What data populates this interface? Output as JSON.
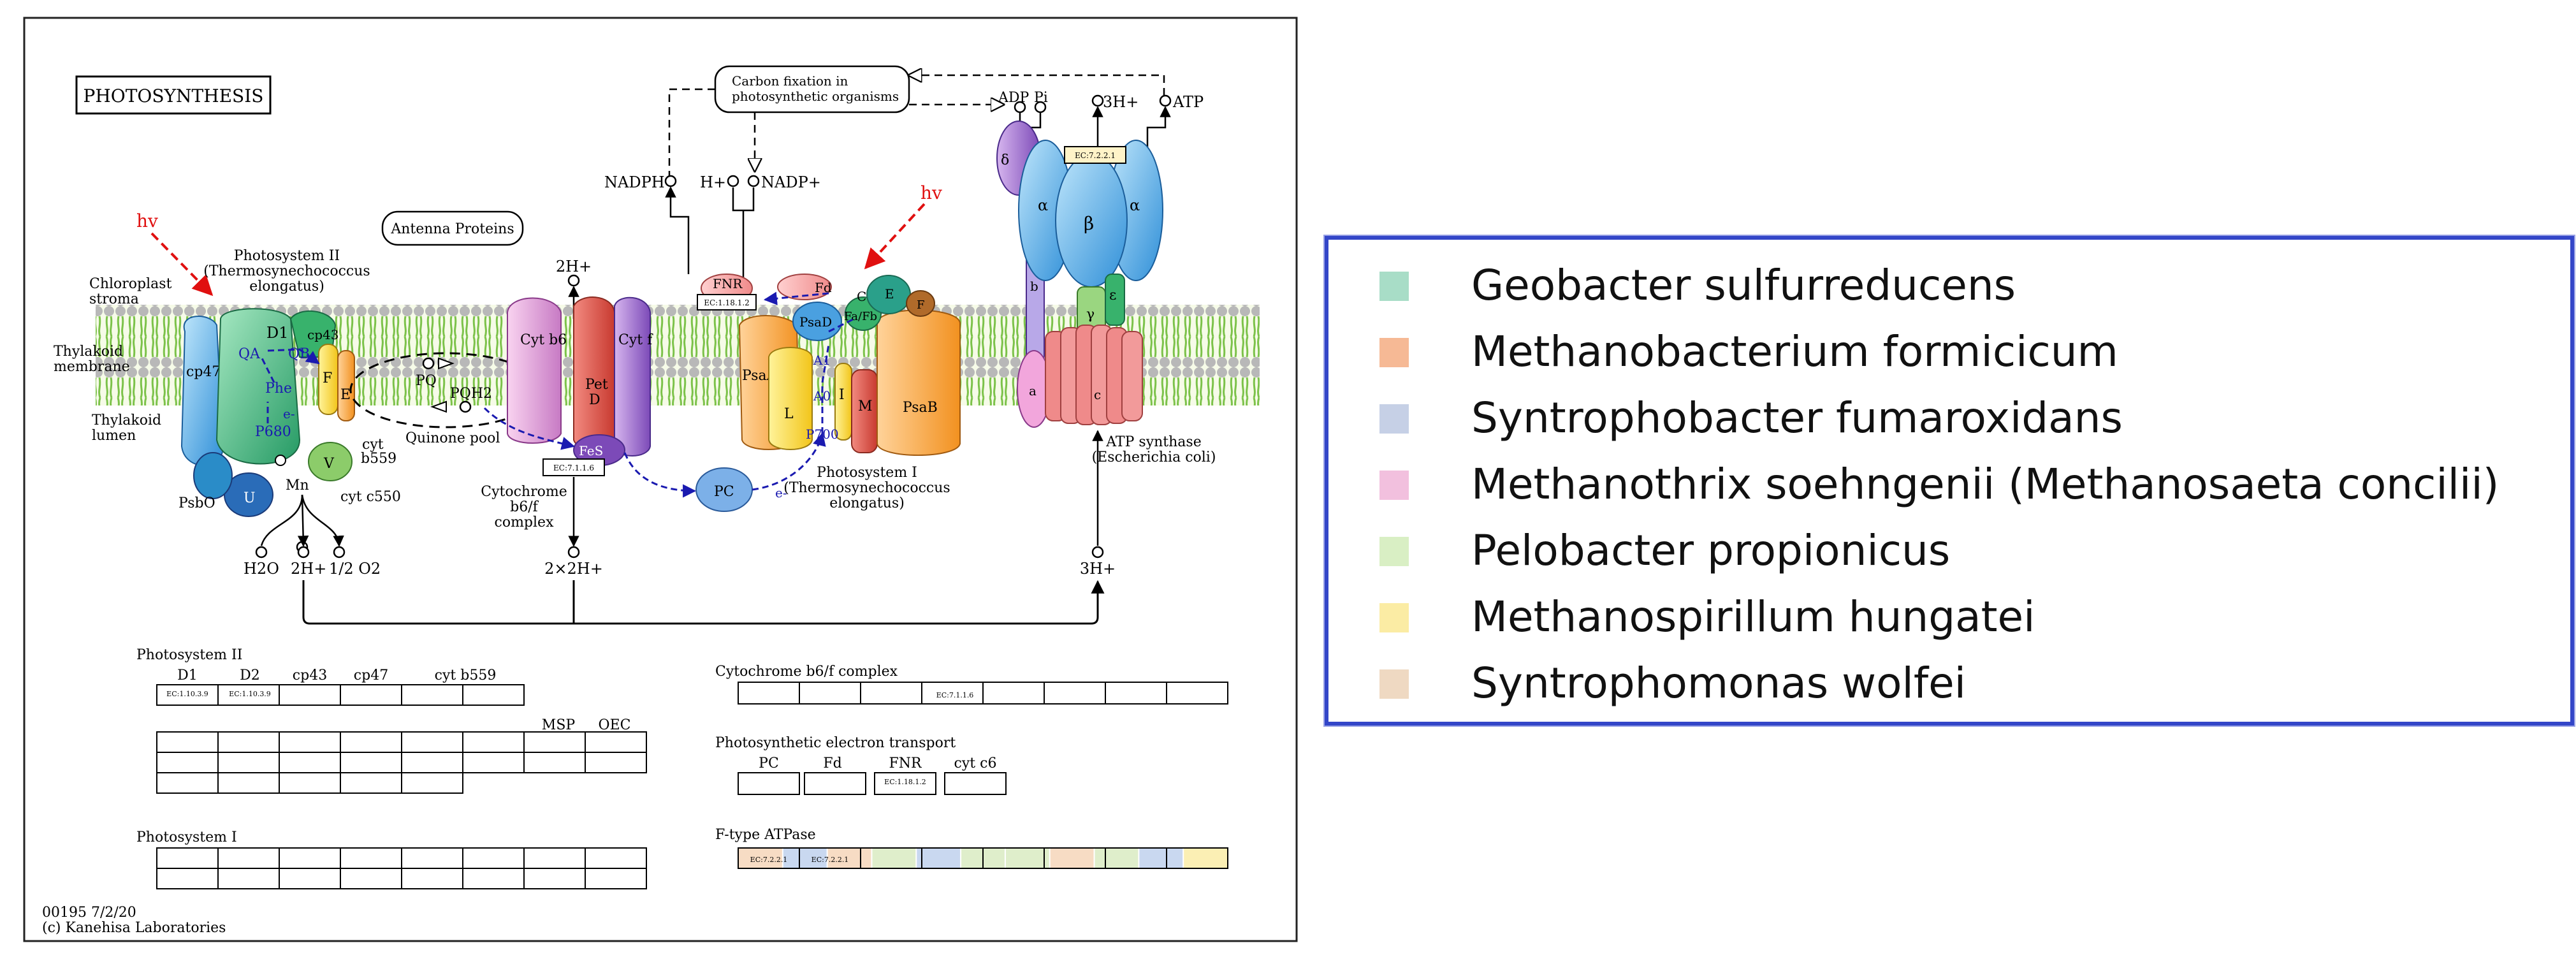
{
  "pathway": {
    "title": "PHOTOSYNTHESIS",
    "footer_id": "00195 7/2/20",
    "footer_copyright": "(c) Kanehisa Laboratories",
    "hv1": "hv",
    "hv2": "hv",
    "antenna": "Antenna Proteins",
    "carbon_fixation_1": "Carbon fixation in",
    "carbon_fixation_2": "photosynthetic organisms",
    "chloroplast_1": "Chloroplast",
    "chloroplast_2": "stroma",
    "thylakoid_mem_1": "Thylakoid",
    "thylakoid_mem_2": "membrane",
    "thylakoid_lum_1": "Thylakoid",
    "thylakoid_lum_2": "lumen",
    "ps2_title_1": "Photosystem II",
    "ps2_title_2": "(Thermosynechococcus",
    "ps2_title_3": "elongatus)",
    "ps1_title_1": "Photosystem I",
    "ps1_title_2": "(Thermosynechococcus",
    "ps1_title_3": "elongatus)",
    "cyt_complex_1": "Cytochrome",
    "cyt_complex_2": "b6/f",
    "cyt_complex_3": "complex",
    "atp_synthase_1": "ATP synthase",
    "atp_synthase_2": "(Escherichia coli)",
    "quinone_pool": "Quinone pool",
    "labels": {
      "nadph": "NADPH",
      "hplus": "H+",
      "nadp": "NADP+",
      "adp": "ADP",
      "pi": "Pi",
      "threeh_top": "3H+",
      "atp": "ATP",
      "twoh_top": "2H+",
      "h2o": "H2O",
      "twoh_bottom": "2H+",
      "half_o2": "1/2 O2",
      "twoxtwoh": "2×2H+",
      "threeh_bottom": "3H+",
      "d1": "D1",
      "cp43": "cp43",
      "cp47": "cp47",
      "qa": "QA",
      "qb": "QB",
      "pheo": "Phe",
      "p680": "P680",
      "f": "F",
      "e": "E",
      "v": "V",
      "u": "U",
      "mn": "Mn",
      "psbo": "PsbO",
      "cytb559_1": "cyt",
      "cytb559_2": "b559",
      "cytc550": "cyt c550",
      "pq": "PQ",
      "pqh2": "PQH2",
      "cytb6": "Cyt b6",
      "pet_1": "Pet",
      "pet_2": "D",
      "cytf": "Cyt f",
      "fes": "FeS",
      "fnr": "FNR",
      "fd": "Fd",
      "psad": "PsaD",
      "c_sub": "C",
      "e_sub": "E",
      "fafb": "Fa/Fb",
      "psaa": "PsaA",
      "a1": "A1",
      "a0": "A0",
      "p700": "P700",
      "l": "L",
      "i": "I",
      "m": "M",
      "psab": "PsaB",
      "fe_sub": "F",
      "pc": "PC",
      "eminus": "e-",
      "eminus2": "e-",
      "delta": "δ",
      "alpha1": "α",
      "beta": "β",
      "alpha2": "α",
      "b_sub": "b",
      "gamma": "γ",
      "epsilon": "ε",
      "a_sub": "a",
      "c_ring": "c"
    },
    "ec": {
      "fnr": "EC:1.18.1.2",
      "cyt": "EC:7.1.1.6",
      "atp": "EC:7.2.2.1"
    }
  },
  "tables": {
    "ps2": {
      "title": "Photosystem II",
      "headers": [
        "D1",
        "D2",
        "cp43",
        "cp47",
        "cyt b559"
      ],
      "extra_headers": [
        "MSP",
        "OEC"
      ],
      "row1_ec": [
        "EC:1.10.3.9",
        "EC:1.10.3.9"
      ]
    },
    "ps1": {
      "title": "Photosystem I"
    },
    "cyt": {
      "title": "Cytochrome b6/f complex",
      "ec": "EC:7.1.1.6"
    },
    "pet": {
      "title": "Photosynthetic electron transport",
      "headers": [
        "PC",
        "Fd",
        "FNR",
        "cyt c6"
      ],
      "ec": "EC:1.18.1.2"
    },
    "atp": {
      "title": "F-type ATPase",
      "ec": [
        "EC:7.2.2.1",
        "EC:7.2.2.1"
      ],
      "cell_colors": [
        "#f7dcc4",
        "#c9d8f0",
        "#f7dcc4",
        "#dfeecb",
        "#c9d8f0",
        "#dfeecb",
        "#dfeecb",
        "#f7dcc4",
        "#dfeecb",
        "#c9d8f0",
        "#fbefb4"
      ]
    }
  },
  "legend": {
    "items": [
      {
        "label": "Geobacter sulfurreducens",
        "color": "#a8ddc7"
      },
      {
        "label": "Methanobacterium formicicum",
        "color": "#f6b995"
      },
      {
        "label": "Syntrophobacter fumaroxidans",
        "color": "#c6d0e6"
      },
      {
        "label": "Methanothrix soehngenii (Methanosaeta concilii)",
        "color": "#f2c0de"
      },
      {
        "label": "Pelobacter propionicus",
        "color": "#d9efc4"
      },
      {
        "label": "Methanospirillum hungatei",
        "color": "#fbeca4"
      },
      {
        "label": "Syntrophomonas wolfei",
        "color": "#efd9c2"
      }
    ]
  }
}
